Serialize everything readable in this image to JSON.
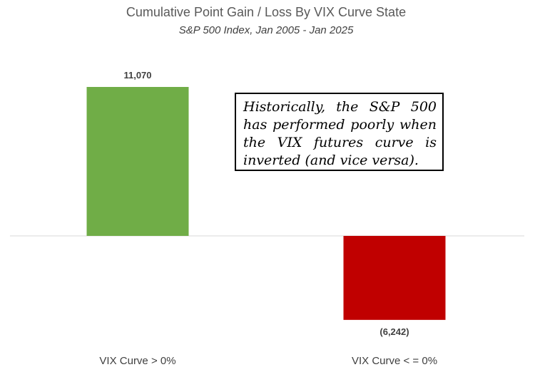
{
  "chart_data": {
    "type": "bar",
    "title": "Cumulative Point Gain / Loss By VIX Curve State",
    "subtitle": "S&P 500 Index, Jan 2005 - Jan 2025",
    "categories": [
      "VIX Curve > 0%",
      "VIX Curve < = 0%"
    ],
    "values": [
      11070,
      -6242
    ],
    "data_labels": [
      "11,070",
      "(6,242)"
    ],
    "colors": [
      "#70AD47",
      "#C00000"
    ],
    "ylim": [
      -8500,
      13500
    ],
    "grid": false,
    "legend": "none",
    "annotation": "Historically, the S&P 500 has performed poorly when the VIX futures curve is inverted (and vice versa)."
  }
}
